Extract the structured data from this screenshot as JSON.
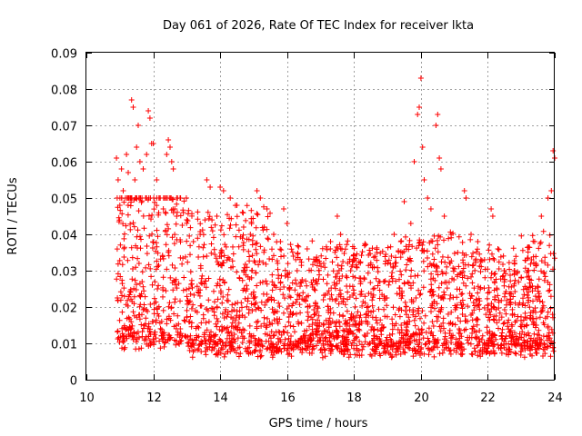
{
  "chart_data": {
    "type": "scatter",
    "title": "Day 061 of 2026, Rate Of TEC Index for receiver lkta",
    "xlabel": "GPS time / hours",
    "ylabel": "ROTI / TECUs",
    "xlim": [
      10,
      24
    ],
    "ylim": [
      0,
      0.09
    ],
    "xticks": [
      10,
      12,
      14,
      16,
      18,
      20,
      22,
      24
    ],
    "xtick_labels": [
      "10",
      "12",
      "14",
      "16",
      "18",
      "20",
      "22",
      "24"
    ],
    "yticks": [
      0,
      0.01,
      0.02,
      0.03,
      0.04,
      0.05,
      0.06,
      0.07,
      0.08,
      0.09
    ],
    "ytick_labels": [
      "0",
      "0.01",
      "0.02",
      "0.03",
      "0.04",
      "0.05",
      "0.06",
      "0.07",
      "0.08",
      "0.09"
    ],
    "grid": true,
    "marker": "+",
    "color": "#ff0000",
    "series": [
      {
        "name": "ROTI",
        "points": [
          [
            10.9,
            0.061
          ],
          [
            10.95,
            0.055
          ],
          [
            11.0,
            0.048
          ],
          [
            11.05,
            0.058
          ],
          [
            11.1,
            0.052
          ],
          [
            11.2,
            0.062
          ],
          [
            11.25,
            0.057
          ],
          [
            11.35,
            0.077
          ],
          [
            11.4,
            0.075
          ],
          [
            11.45,
            0.055
          ],
          [
            11.5,
            0.064
          ],
          [
            11.55,
            0.07
          ],
          [
            11.6,
            0.06
          ],
          [
            11.7,
            0.058
          ],
          [
            11.8,
            0.062
          ],
          [
            11.85,
            0.074
          ],
          [
            11.9,
            0.072
          ],
          [
            11.95,
            0.065
          ],
          [
            12.0,
            0.065
          ],
          [
            12.1,
            0.055
          ],
          [
            12.2,
            0.05
          ],
          [
            12.3,
            0.047
          ],
          [
            12.4,
            0.062
          ],
          [
            12.45,
            0.066
          ],
          [
            12.5,
            0.064
          ],
          [
            12.55,
            0.06
          ],
          [
            12.6,
            0.058
          ],
          [
            12.7,
            0.045
          ],
          [
            12.8,
            0.05
          ],
          [
            12.9,
            0.046
          ],
          [
            13.0,
            0.044
          ],
          [
            13.2,
            0.038
          ],
          [
            13.4,
            0.04
          ],
          [
            13.6,
            0.055
          ],
          [
            13.7,
            0.053
          ],
          [
            13.9,
            0.045
          ],
          [
            14.0,
            0.053
          ],
          [
            14.1,
            0.052
          ],
          [
            14.3,
            0.05
          ],
          [
            14.5,
            0.048
          ],
          [
            14.7,
            0.042
          ],
          [
            14.9,
            0.04
          ],
          [
            15.1,
            0.052
          ],
          [
            15.2,
            0.05
          ],
          [
            15.4,
            0.047
          ],
          [
            15.6,
            0.04
          ],
          [
            15.8,
            0.038
          ],
          [
            15.9,
            0.047
          ],
          [
            16.0,
            0.043
          ],
          [
            16.3,
            0.03
          ],
          [
            16.6,
            0.036
          ],
          [
            16.9,
            0.033
          ],
          [
            17.3,
            0.038
          ],
          [
            17.5,
            0.045
          ],
          [
            17.6,
            0.04
          ],
          [
            17.9,
            0.03
          ],
          [
            18.3,
            0.028
          ],
          [
            18.6,
            0.031
          ],
          [
            18.9,
            0.027
          ],
          [
            19.2,
            0.04
          ],
          [
            19.4,
            0.038
          ],
          [
            19.5,
            0.049
          ],
          [
            19.7,
            0.043
          ],
          [
            19.8,
            0.06
          ],
          [
            19.9,
            0.073
          ],
          [
            19.95,
            0.075
          ],
          [
            20.0,
            0.083
          ],
          [
            20.05,
            0.064
          ],
          [
            20.1,
            0.055
          ],
          [
            20.2,
            0.05
          ],
          [
            20.3,
            0.047
          ],
          [
            20.45,
            0.07
          ],
          [
            20.5,
            0.073
          ],
          [
            20.55,
            0.061
          ],
          [
            20.6,
            0.058
          ],
          [
            20.7,
            0.045
          ],
          [
            20.9,
            0.04
          ],
          [
            21.1,
            0.035
          ],
          [
            21.3,
            0.052
          ],
          [
            21.35,
            0.05
          ],
          [
            21.5,
            0.04
          ],
          [
            21.7,
            0.038
          ],
          [
            21.9,
            0.033
          ],
          [
            22.1,
            0.047
          ],
          [
            22.15,
            0.045
          ],
          [
            22.3,
            0.036
          ],
          [
            22.5,
            0.03
          ],
          [
            22.8,
            0.03
          ],
          [
            23.0,
            0.028
          ],
          [
            23.2,
            0.03
          ],
          [
            23.4,
            0.038
          ],
          [
            23.6,
            0.045
          ],
          [
            23.8,
            0.05
          ],
          [
            23.9,
            0.052
          ],
          [
            23.95,
            0.063
          ],
          [
            24.0,
            0.061
          ]
        ]
      }
    ]
  }
}
